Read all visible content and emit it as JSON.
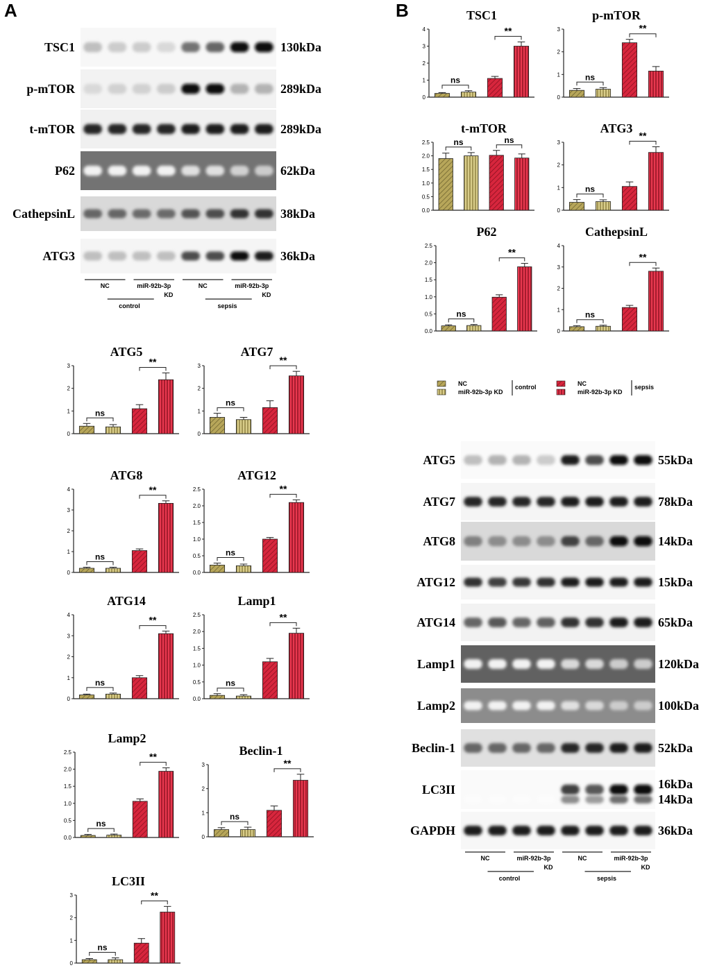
{
  "panels": {
    "A": "A",
    "B": "B"
  },
  "colors": {
    "control": "#b7a65a",
    "sepsis": "#d7263d",
    "stroke": "#222222"
  },
  "blotA": {
    "rows": [
      {
        "label": "TSC1",
        "kda": "130kDa",
        "bands": [
          0.25,
          0.2,
          0.2,
          0.15,
          0.55,
          0.6,
          0.95,
          0.95
        ],
        "bg": 0.03
      },
      {
        "label": "p-mTOR",
        "kda": "289kDa",
        "bands": [
          0.15,
          0.18,
          0.18,
          0.2,
          0.95,
          0.95,
          0.3,
          0.3
        ],
        "bg": 0.05
      },
      {
        "label": "t-mTOR",
        "kda": "289kDa",
        "bands": [
          0.85,
          0.85,
          0.85,
          0.85,
          0.88,
          0.88,
          0.88,
          0.88
        ],
        "bg": 0.06
      },
      {
        "label": "P62",
        "kda": "62kDa",
        "bands": [
          0.05,
          0.05,
          0.05,
          0.05,
          0.12,
          0.12,
          0.18,
          0.2
        ],
        "bg": 0.55
      },
      {
        "label": "CathepsinL",
        "kda": "38kDa",
        "bands": [
          0.6,
          0.6,
          0.58,
          0.58,
          0.68,
          0.7,
          0.8,
          0.8
        ],
        "bg": 0.15
      },
      {
        "label": "ATG3",
        "kda": "36kDa",
        "bands": [
          0.25,
          0.25,
          0.25,
          0.25,
          0.7,
          0.7,
          0.95,
          0.9
        ],
        "bg": 0.04
      }
    ],
    "groups": {
      "nc1": "NC",
      "kd1": "miR-92b-3p",
      "kd1b": "KD",
      "control": "control",
      "nc2": "NC",
      "kd2": "miR-92b-3p",
      "kd2b": "KD",
      "sepsis": "sepsis"
    }
  },
  "blotB": {
    "rows": [
      {
        "label": "ATG5",
        "kda": "55kDa",
        "bands": [
          0.25,
          0.3,
          0.3,
          0.2,
          0.9,
          0.7,
          0.95,
          0.95
        ],
        "bg": 0.02
      },
      {
        "label": "ATG7",
        "kda": "78kDa",
        "bands": [
          0.85,
          0.85,
          0.85,
          0.85,
          0.88,
          0.9,
          0.9,
          0.9
        ],
        "bg": 0.04
      },
      {
        "label": "ATG8",
        "kda": "14kDa",
        "bands": [
          0.5,
          0.45,
          0.45,
          0.45,
          0.75,
          0.6,
          0.95,
          0.95
        ],
        "bg": 0.15
      },
      {
        "label": "ATG12",
        "kda": "15kDa",
        "bands": [
          0.8,
          0.75,
          0.78,
          0.8,
          0.9,
          0.9,
          0.9,
          0.9
        ],
        "bg": 0.04
      },
      {
        "label": "ATG14",
        "kda": "65kDa",
        "bands": [
          0.6,
          0.65,
          0.6,
          0.62,
          0.8,
          0.8,
          0.9,
          0.9
        ],
        "bg": 0.05
      },
      {
        "label": "Lamp1",
        "kda": "120kDa",
        "bands": [
          0.05,
          0.05,
          0.05,
          0.05,
          0.15,
          0.15,
          0.2,
          0.2
        ],
        "bg": 0.62
      },
      {
        "label": "Lamp2",
        "kda": "100kDa",
        "bands": [
          0.05,
          0.05,
          0.05,
          0.05,
          0.12,
          0.15,
          0.2,
          0.2
        ],
        "bg": 0.45
      },
      {
        "label": "Beclin-1",
        "kda": "52kDa",
        "bands": [
          0.6,
          0.6,
          0.6,
          0.6,
          0.85,
          0.85,
          0.9,
          0.9
        ],
        "bg": 0.12
      },
      {
        "label": "LC3II",
        "kda": "16kDa",
        "kda2": "14kDa",
        "bands": [
          0.02,
          0.02,
          0.02,
          0.02,
          0.75,
          0.65,
          0.95,
          0.95
        ],
        "bg": 0.02
      },
      {
        "label": "GAPDH",
        "kda": "36kDa",
        "bands": [
          0.9,
          0.9,
          0.9,
          0.9,
          0.9,
          0.9,
          0.9,
          0.9
        ],
        "bg": 0.03
      }
    ],
    "groups": {
      "nc1": "NC",
      "kd1": "miR-92b-3p",
      "kd1b": "KD",
      "control": "control",
      "nc2": "NC",
      "kd2": "miR-92b-3p",
      "kd2b": "KD",
      "sepsis": "sepsis"
    }
  },
  "legend": {
    "nc": "NC",
    "kd": "miR-92b-3p KD",
    "control": "control",
    "sepsis": "sepsis"
  },
  "chart_data": [
    {
      "type": "bar",
      "title": "TSC1",
      "categories": [
        "NC control",
        "miR-92b-3p KD control",
        "NC sepsis",
        "miR-92b-3p KD sepsis"
      ],
      "values": [
        0.22,
        0.3,
        1.1,
        3.0
      ],
      "errors": [
        0.05,
        0.08,
        0.12,
        0.25
      ],
      "ylim": [
        0,
        4
      ],
      "yticks": [
        "0",
        "1",
        "2",
        "3",
        "4"
      ],
      "sig_left": "ns",
      "sig_right": "**"
    },
    {
      "type": "bar",
      "title": "p-mTOR",
      "categories": [
        "NC control",
        "miR-92b-3p KD control",
        "NC sepsis",
        "miR-92b-3p KD sepsis"
      ],
      "values": [
        0.3,
        0.35,
        2.4,
        1.15
      ],
      "errors": [
        0.08,
        0.07,
        0.15,
        0.2
      ],
      "ylim": [
        0,
        3
      ],
      "yticks": [
        "0",
        "1",
        "2",
        "3"
      ],
      "sig_left": "ns",
      "sig_right": "**"
    },
    {
      "type": "bar",
      "title": "t-mTOR",
      "categories": [
        "NC control",
        "miR-92b-3p KD control",
        "NC sepsis",
        "miR-92b-3p KD sepsis"
      ],
      "values": [
        1.9,
        2.0,
        2.02,
        1.92
      ],
      "errors": [
        0.2,
        0.12,
        0.18,
        0.15
      ],
      "ylim": [
        0,
        2.5
      ],
      "yticks": [
        "0.0",
        "0.5",
        "1.0",
        "1.5",
        "2.0",
        "2.5"
      ],
      "sig_left": "ns",
      "sig_right": "ns"
    },
    {
      "type": "bar",
      "title": "ATG3",
      "categories": [
        "NC control",
        "miR-92b-3p KD control",
        "NC sepsis",
        "miR-92b-3p KD sepsis"
      ],
      "values": [
        0.35,
        0.38,
        1.05,
        2.55
      ],
      "errors": [
        0.12,
        0.08,
        0.2,
        0.25
      ],
      "ylim": [
        0,
        3
      ],
      "yticks": [
        "0",
        "1",
        "2",
        "3"
      ],
      "sig_left": "ns",
      "sig_right": "**"
    },
    {
      "type": "bar",
      "title": "P62",
      "categories": [
        "NC control",
        "miR-92b-3p KD control",
        "NC sepsis",
        "miR-92b-3p KD sepsis"
      ],
      "values": [
        0.15,
        0.16,
        0.99,
        1.88
      ],
      "errors": [
        0.03,
        0.03,
        0.07,
        0.1
      ],
      "ylim": [
        0,
        2.5
      ],
      "yticks": [
        "0.0",
        "0.5",
        "1.0",
        "1.5",
        "2.0",
        "2.5"
      ],
      "sig_left": "ns",
      "sig_right": "**"
    },
    {
      "type": "bar",
      "title": "CathepsinL",
      "categories": [
        "NC control",
        "miR-92b-3p KD control",
        "NC sepsis",
        "miR-92b-3p KD sepsis"
      ],
      "values": [
        0.2,
        0.22,
        1.1,
        2.8
      ],
      "errors": [
        0.05,
        0.05,
        0.1,
        0.15
      ],
      "ylim": [
        0,
        4
      ],
      "yticks": [
        "0",
        "1",
        "2",
        "3",
        "4"
      ],
      "sig_left": "ns",
      "sig_right": "**"
    },
    {
      "type": "bar",
      "title": "ATG5",
      "categories": [
        "NC control",
        "miR-92b-3p KD control",
        "NC sepsis",
        "miR-92b-3p KD sepsis"
      ],
      "values": [
        0.33,
        0.3,
        1.1,
        2.38
      ],
      "errors": [
        0.12,
        0.1,
        0.18,
        0.3
      ],
      "ylim": [
        0,
        3
      ],
      "yticks": [
        "0",
        "1",
        "2",
        "3"
      ],
      "sig_left": "ns",
      "sig_right": "**"
    },
    {
      "type": "bar",
      "title": "ATG7",
      "categories": [
        "NC control",
        "miR-92b-3p KD control",
        "NC sepsis",
        "miR-92b-3p KD sepsis"
      ],
      "values": [
        0.72,
        0.62,
        1.15,
        2.55
      ],
      "errors": [
        0.18,
        0.1,
        0.3,
        0.2
      ],
      "ylim": [
        0,
        3
      ],
      "yticks": [
        "0",
        "1",
        "2",
        "3"
      ],
      "sig_left": "ns",
      "sig_right": "**"
    },
    {
      "type": "bar",
      "title": "ATG8",
      "categories": [
        "NC control",
        "miR-92b-3p KD control",
        "NC sepsis",
        "miR-92b-3p KD sepsis"
      ],
      "values": [
        0.2,
        0.2,
        1.05,
        3.32
      ],
      "errors": [
        0.05,
        0.05,
        0.08,
        0.12
      ],
      "ylim": [
        0,
        4
      ],
      "yticks": [
        "0",
        "1",
        "2",
        "3",
        "4"
      ],
      "sig_left": "ns",
      "sig_right": "**"
    },
    {
      "type": "bar",
      "title": "ATG12",
      "categories": [
        "NC control",
        "miR-92b-3p KD control",
        "NC sepsis",
        "miR-92b-3p KD sepsis"
      ],
      "values": [
        0.22,
        0.2,
        1.0,
        2.1
      ],
      "errors": [
        0.06,
        0.05,
        0.05,
        0.08
      ],
      "ylim": [
        0,
        2.5
      ],
      "yticks": [
        "0.0",
        "0.5",
        "1.0",
        "1.5",
        "2.0",
        "2.5"
      ],
      "sig_left": "ns",
      "sig_right": "**"
    },
    {
      "type": "bar",
      "title": "ATG14",
      "categories": [
        "NC control",
        "miR-92b-3p KD control",
        "NC sepsis",
        "miR-92b-3p KD sepsis"
      ],
      "values": [
        0.18,
        0.22,
        1.0,
        3.1
      ],
      "errors": [
        0.04,
        0.05,
        0.1,
        0.12
      ],
      "ylim": [
        0,
        4
      ],
      "yticks": [
        "0",
        "1",
        "2",
        "3",
        "4"
      ],
      "sig_left": "ns",
      "sig_right": "**"
    },
    {
      "type": "bar",
      "title": "Lamp1",
      "categories": [
        "NC control",
        "miR-92b-3p KD control",
        "NC sepsis",
        "miR-92b-3p KD sepsis"
      ],
      "values": [
        0.1,
        0.08,
        1.1,
        1.95
      ],
      "errors": [
        0.05,
        0.04,
        0.1,
        0.15
      ],
      "ylim": [
        0,
        2.5
      ],
      "yticks": [
        "0.0",
        "0.5",
        "1.0",
        "1.5",
        "2.0",
        "2.5"
      ],
      "sig_left": "ns",
      "sig_right": "**"
    },
    {
      "type": "bar",
      "title": "Lamp2",
      "categories": [
        "NC control",
        "miR-92b-3p KD control",
        "NC sepsis",
        "miR-92b-3p KD sepsis"
      ],
      "values": [
        0.06,
        0.07,
        1.06,
        1.94
      ],
      "errors": [
        0.03,
        0.03,
        0.07,
        0.1
      ],
      "ylim": [
        0,
        2.5
      ],
      "yticks": [
        "0.0",
        "0.5",
        "1.0",
        "1.5",
        "2.0",
        "2.5"
      ],
      "sig_left": "ns",
      "sig_right": "**"
    },
    {
      "type": "bar",
      "title": "Beclin-1",
      "categories": [
        "NC control",
        "miR-92b-3p KD control",
        "NC sepsis",
        "miR-92b-3p KD sepsis"
      ],
      "values": [
        0.3,
        0.3,
        1.1,
        2.35
      ],
      "errors": [
        0.08,
        0.1,
        0.18,
        0.25
      ],
      "ylim": [
        0,
        3
      ],
      "yticks": [
        "0",
        "1",
        "2",
        "3"
      ],
      "sig_left": "ns",
      "sig_right": "**"
    },
    {
      "type": "bar",
      "title": "LC3II",
      "categories": [
        "NC control",
        "miR-92b-3p KD control",
        "NC sepsis",
        "miR-92b-3p KD sepsis"
      ],
      "values": [
        0.15,
        0.15,
        0.88,
        2.25
      ],
      "errors": [
        0.05,
        0.08,
        0.2,
        0.25
      ],
      "ylim": [
        0,
        3
      ],
      "yticks": [
        "0",
        "1",
        "2",
        "3"
      ],
      "sig_left": "ns",
      "sig_right": "**"
    }
  ]
}
